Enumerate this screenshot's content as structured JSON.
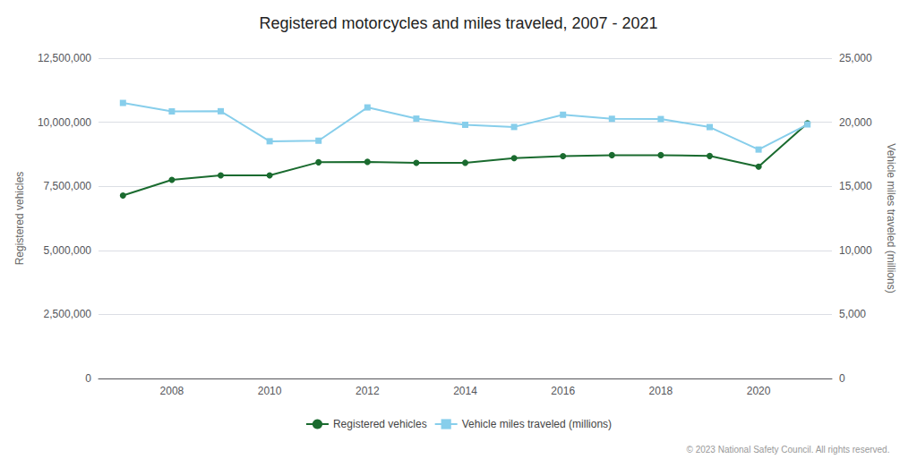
{
  "chart_data": {
    "type": "line",
    "title": "Registered motorcycles and miles traveled, 2007 - 2021",
    "categories": [
      null,
      "2008",
      null,
      "2010",
      null,
      "2012",
      null,
      "2014",
      null,
      "2016",
      null,
      "2018",
      null,
      "2020",
      null
    ],
    "series": [
      {
        "name": "Registered vehicles",
        "color": "#1a6b2f",
        "marker": "circle",
        "values": [
          7138476,
          7752000,
          7929000,
          7929000,
          8437000,
          8454000,
          8412000,
          8418000,
          8601000,
          8679000,
          8715000,
          8715000,
          8682000,
          8264000,
          9956000
        ]
      },
      {
        "name": "Vehicle miles traveled (millions)",
        "color": "#87CEEB",
        "marker": "square",
        "axis": "y2",
        "values": [
          21505,
          20844,
          20856,
          18514,
          18558,
          21154,
          20280,
          19800,
          19630,
          20584,
          20266,
          20246,
          19620,
          17867,
          19830
        ]
      }
    ],
    "ylabel": "Registered vehicles",
    "y2label": "Vehicle miles traveled (millions)",
    "ylim": [
      0,
      12500000
    ],
    "yticks": [
      0,
      {
        "value": 2500000,
        "label": "2,500,000"
      },
      {
        "value": 5000000,
        "label": "5,000,000"
      },
      {
        "value": 7500000,
        "label": "7,500,000"
      },
      {
        "value": 10000000,
        "label": "10,000,000"
      },
      {
        "value": 12500000,
        "label": "12,500,000"
      }
    ],
    "y2lim": [
      0,
      25000
    ],
    "y2ticks": [
      0,
      {
        "value": 5000,
        "label": "5,000"
      },
      {
        "value": 10000,
        "label": "10,000"
      },
      {
        "value": 15000,
        "label": "15,000"
      },
      {
        "value": 20000,
        "label": "20,000"
      },
      {
        "value": 25000,
        "label": "25,000"
      }
    ],
    "grid": true,
    "legend": "bottom",
    "footer": "© 2023 National Safety Council. All rights reserved."
  }
}
